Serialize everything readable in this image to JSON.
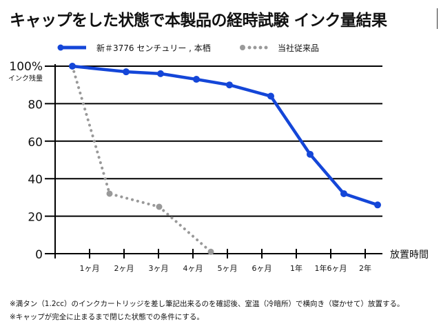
{
  "chart_data": {
    "type": "line",
    "title": "キャップをした状態で本製品の経時試験 インク量結果",
    "ylabel": "インク残量",
    "xlabel": "放置時間",
    "ylim": [
      0,
      100
    ],
    "yticks": [
      "0",
      "20",
      "40",
      "60",
      "80",
      "100%"
    ],
    "ytick_values": [
      0,
      20,
      40,
      60,
      80,
      100
    ],
    "categories": [
      "1ヶ月",
      "2ヶ月",
      "3ヶ月",
      "4ヶ月",
      "5ヶ月",
      "6ヶ月",
      "1年",
      "1年6ヶ月",
      "2年"
    ],
    "x_note": "x in category index units (0 = origin, 1 = 1ヶ月 ... 9 = 2年)",
    "grid": true,
    "legend_position": "top",
    "series": [
      {
        "name": "新＃3776 センチュリー , 本栖",
        "color": "#1446d8",
        "style": "solid",
        "x": [
          0.5,
          2.06,
          3.06,
          4.1,
          5.06,
          6.26,
          7.4,
          8.38,
          9.36
        ],
        "values": [
          100,
          97,
          96,
          93,
          90,
          84,
          53,
          32,
          26
        ]
      },
      {
        "name": "当社従来品",
        "color": "#999999",
        "style": "dotted",
        "x": [
          0.5,
          1.58,
          3.02,
          4.52
        ],
        "values": [
          100,
          32,
          25,
          1
        ]
      }
    ]
  },
  "notes": [
    "※満タン（1.2cc）のインクカートリッジを差し筆記出来るのを確認後、室温（冷暗所）で横向き（寝かせて）放置する。",
    "※キャップが完全に止まるまで閉じた状態での条件にする。"
  ]
}
